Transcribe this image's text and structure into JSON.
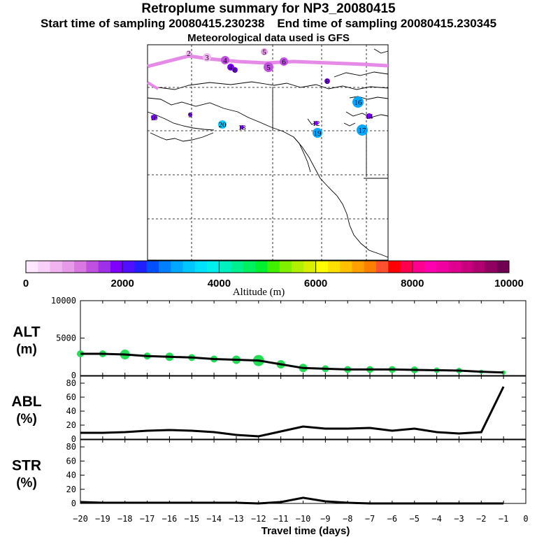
{
  "header": {
    "title": "Retroplume summary for NP3_20080415",
    "start_time": "Start time of sampling 20080415.230238",
    "end_time": "End time of sampling 20080415.230345",
    "met_data": "Meteorological data used is GFS"
  },
  "colors": {
    "plume_track": "#e68ae8",
    "ground_circle": "#22dd55",
    "line": "#000000"
  },
  "colorbar": {
    "label": "Altitude (m)",
    "tick_labels": [
      "0",
      "2000",
      "4000",
      "6000",
      "8000",
      "10000"
    ],
    "colors": [
      "#ffe8ff",
      "#f8d0f8",
      "#f0b4f0",
      "#e69ae8",
      "#d878e0",
      "#c050e0",
      "#a030e8",
      "#8000ff",
      "#5010ff",
      "#2020ff",
      "#0050ff",
      "#0080ff",
      "#00a8ff",
      "#00c8ff",
      "#00e0ff",
      "#00f0f0",
      "#00f0c0",
      "#00f090",
      "#00f060",
      "#00f030",
      "#40f000",
      "#80f000",
      "#b0f000",
      "#d8f000",
      "#ffff00",
      "#ffe000",
      "#ffc000",
      "#ffa000",
      "#ff8000",
      "#ff5030",
      "#ff0000",
      "#ff0050",
      "#ff0090",
      "#ff00b0",
      "#f000a0",
      "#e00090",
      "#c80080",
      "#b00070",
      "#900060",
      "#700050"
    ]
  },
  "map": {
    "markers": [
      {
        "label": "2",
        "day": -2,
        "color": "#f0b4f0"
      },
      {
        "label": "3",
        "day": -3,
        "color": "#f0b4f0"
      },
      {
        "label": "4",
        "day": -4,
        "color": "#c050e0"
      },
      {
        "label": "4",
        "day": -4,
        "color": "#8000ff"
      },
      {
        "label": "5",
        "day": -5,
        "color": "#e69ae8"
      },
      {
        "label": "5",
        "day": -5,
        "color": "#c050e0"
      },
      {
        "label": "6",
        "day": -6,
        "color": "#c050e0"
      },
      {
        "label": "6",
        "day": -6,
        "color": "#8000ff"
      },
      {
        "label": "8",
        "day": -8,
        "color": "#8000ff"
      },
      {
        "label": "9",
        "day": -9,
        "color": "#8000ff"
      },
      {
        "label": "10",
        "day": -10,
        "color": "#8000ff"
      },
      {
        "label": "12",
        "day": -12,
        "color": "#8000ff"
      },
      {
        "label": "14",
        "day": -14,
        "color": "#8000ff"
      },
      {
        "label": "16",
        "day": -16,
        "color": "#00a8ff"
      },
      {
        "label": "17",
        "day": -17,
        "color": "#00a8ff"
      },
      {
        "label": "18",
        "day": -18,
        "color": "#8000ff"
      },
      {
        "label": "19",
        "day": -19,
        "color": "#00a8ff"
      },
      {
        "label": "20",
        "day": -20,
        "color": "#00c8ff"
      }
    ]
  },
  "chart_data": [
    {
      "type": "line",
      "panel": "ALT",
      "ylabel": "ALT",
      "yunit": "(m)",
      "ylim": [
        0,
        10000
      ],
      "yticks": [
        "10000",
        "5000",
        "0"
      ],
      "x": [
        -20,
        -19,
        -18,
        -17,
        -16,
        -15,
        -14,
        -13,
        -12,
        -11,
        -10,
        -9,
        -8,
        -7,
        -6,
        -5,
        -4,
        -3,
        -2,
        -1
      ],
      "values": [
        2900,
        2900,
        2800,
        2600,
        2500,
        2400,
        2200,
        2100,
        2000,
        1500,
        1000,
        900,
        800,
        800,
        800,
        750,
        700,
        650,
        500,
        400
      ],
      "scatter_sizes": [
        5,
        5,
        7,
        5,
        6,
        5,
        5,
        6,
        8,
        6,
        6,
        5,
        5,
        5,
        5,
        5,
        4,
        4,
        3,
        3
      ]
    },
    {
      "type": "line",
      "panel": "ABL",
      "ylabel": "ABL",
      "yunit": "(%)",
      "ylim": [
        0,
        90
      ],
      "yticks": [
        "80",
        "60",
        "40",
        "20",
        "0"
      ],
      "x": [
        -20,
        -19,
        -18,
        -17,
        -16,
        -15,
        -14,
        -13,
        -12,
        -11,
        -10,
        -9,
        -8,
        -7,
        -6,
        -5,
        -4,
        -3,
        -2,
        -1
      ],
      "values": [
        9,
        9,
        10,
        12,
        13,
        12,
        10,
        6,
        4,
        11,
        18,
        15,
        15,
        16,
        12,
        15,
        10,
        8,
        10,
        75
      ]
    },
    {
      "type": "line",
      "panel": "STR",
      "ylabel": "STR",
      "yunit": "(%)",
      "ylim": [
        0,
        90
      ],
      "yticks": [
        "80",
        "60",
        "40",
        "20",
        "0"
      ],
      "x": [
        -20,
        -19,
        -18,
        -17,
        -16,
        -15,
        -14,
        -13,
        -12,
        -11,
        -10,
        -9,
        -8,
        -7,
        -6,
        -5,
        -4,
        -3,
        -2,
        -1
      ],
      "values": [
        2,
        1,
        1,
        1,
        1,
        1,
        1,
        1,
        0,
        2,
        8,
        3,
        1,
        0,
        0,
        0,
        0,
        0,
        0,
        0
      ]
    }
  ],
  "x_axis": {
    "xlabel": "Travel time (days)",
    "tick_labels": [
      "−20",
      "−19",
      "−18",
      "−17",
      "−16",
      "−15",
      "−14",
      "−13",
      "−12",
      "−11",
      "−10",
      "−9",
      "−8",
      "−7",
      "−6",
      "−5",
      "−4",
      "−3",
      "−2",
      "−1",
      "0"
    ]
  }
}
